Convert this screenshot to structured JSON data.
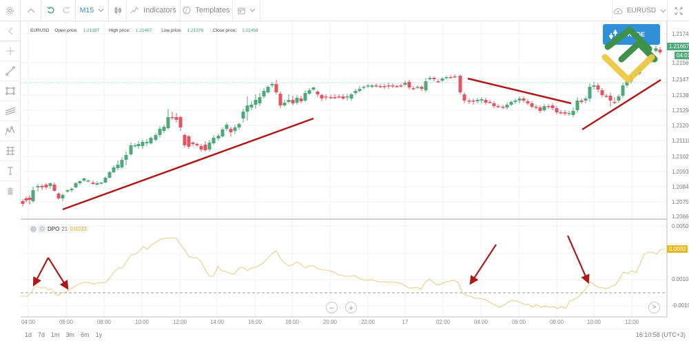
{
  "toolbar": {
    "timeframe": "M15",
    "indicators_label": "Indicators",
    "templates_label": "Templates",
    "symbol": "EURUSD",
    "icons": [
      "gear-icon",
      "chevron-up-icon",
      "undo-icon",
      "redo-icon",
      "chevron-down-icon",
      "candlestick-icon",
      "indicators-icon",
      "templates-icon",
      "calendar-icon",
      "cloud-icon",
      "fullscreen-icon"
    ]
  },
  "sidebar": {
    "tools": [
      "collapse-arrow",
      "crosshair",
      "trend-line",
      "rectangle",
      "parallel-channel",
      "fibonacci",
      "gann-box",
      "text",
      "trash"
    ]
  },
  "info": {
    "symbol": "EURUSD",
    "open_label": "Open price:",
    "open_value": "1.21397",
    "high_label": "High price:",
    "high_value": "1.21467",
    "low_label": "Low price:",
    "low_value": "1.21376",
    "close_label": "Close price:",
    "close_value": "1.21458"
  },
  "trade_button": {
    "label": "TRADE"
  },
  "price_axis": {
    "ticks": [
      "1.21740",
      "1.21560",
      "1.21470",
      "1.21380",
      "1.21290",
      "1.21200",
      "1.21110",
      "1.21020",
      "1.20930",
      "1.20840",
      "1.20750",
      "1.20660"
    ],
    "current_price": "1.21667",
    "countdown": "04:01"
  },
  "dpo": {
    "name": "DPO",
    "period": "21",
    "value": "0.0033",
    "ticks": [
      "0.0050",
      "0.0010",
      "-0.0010"
    ],
    "current_tag": "0.0033"
  },
  "time_axis": {
    "ticks": [
      "04:00",
      "06:00",
      "08:00",
      "10:00",
      "12:00",
      "14:00",
      "16:00",
      "18:00",
      "20:00",
      "22:00",
      "17",
      "02:00",
      "04:00",
      "06:00",
      "08:00",
      "10:00",
      "12:00"
    ]
  },
  "ranges": [
    "1d",
    "7d",
    "1m",
    "3m",
    "6m",
    "1y"
  ],
  "clock": "16:10:58 (UTC+3)",
  "colors": {
    "bull": "#4fa87a",
    "bear": "#e05561",
    "dpo_line": "#e8d38a",
    "trendline": "#b01818",
    "accent": "#3a9e74"
  },
  "chart_data": {
    "type": "candlestick",
    "symbol": "EURUSD",
    "timeframe": "M15",
    "price_range": [
      1.2066,
      1.2174
    ],
    "annotations": [
      "Uptrend line 06:00-19:00 day 1",
      "Downtrend line 03:00-09:00 day 2",
      "Uptrend line 09:30-13:30 day 2",
      "Arrows on DPO pointing at zero-line crossings near 04:30, 06:00, 03:00, 09:45"
    ],
    "dpo_indicator": {
      "period": 21,
      "last_value": 0.0033,
      "ylim": [
        -0.0015,
        0.0055
      ]
    }
  }
}
